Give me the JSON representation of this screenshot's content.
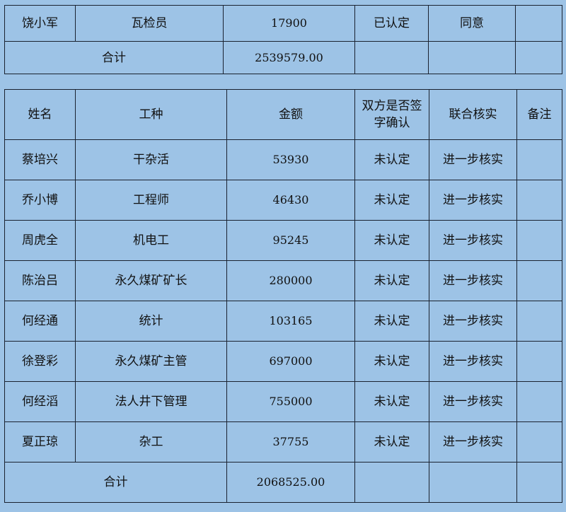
{
  "table1": {
    "rows": [
      {
        "name": "饶小军",
        "job": "瓦检员",
        "amount": "17900",
        "signed": "已认定",
        "verify": "同意",
        "note": ""
      }
    ],
    "total_label": "合计",
    "total": "2539579.00"
  },
  "table2": {
    "headers": {
      "name": "姓名",
      "job": "工种",
      "amount": "金额",
      "signed": "双方是否签字确认",
      "verify": "联合核实",
      "note": "备注"
    },
    "rows": [
      {
        "name": "蔡培兴",
        "job": "干杂活",
        "amount": "53930",
        "signed": "未认定",
        "verify": "进一步核实",
        "note": ""
      },
      {
        "name": "乔小博",
        "job": "工程师",
        "amount": "46430",
        "signed": "未认定",
        "verify": "进一步核实",
        "note": ""
      },
      {
        "name": "周虎全",
        "job": "机电工",
        "amount": "95245",
        "signed": "未认定",
        "verify": "进一步核实",
        "note": ""
      },
      {
        "name": "陈治吕",
        "job": "永久煤矿矿长",
        "amount": "280000",
        "signed": "未认定",
        "verify": "进一步核实",
        "note": ""
      },
      {
        "name": "何经通",
        "job": "统计",
        "amount": "103165",
        "signed": "未认定",
        "verify": "进一步核实",
        "note": ""
      },
      {
        "name": "徐登彩",
        "job": "永久煤矿主管",
        "amount": "697000",
        "signed": "未认定",
        "verify": "进一步核实",
        "note": ""
      },
      {
        "name": "何经滔",
        "job": "法人井下管理",
        "amount": "755000",
        "signed": "未认定",
        "verify": "进一步核实",
        "note": ""
      },
      {
        "name": "夏正琼",
        "job": "杂工",
        "amount": "37755",
        "signed": "未认定",
        "verify": "进一步核实",
        "note": ""
      }
    ],
    "total_label": "合计",
    "total": "2068525.00"
  }
}
